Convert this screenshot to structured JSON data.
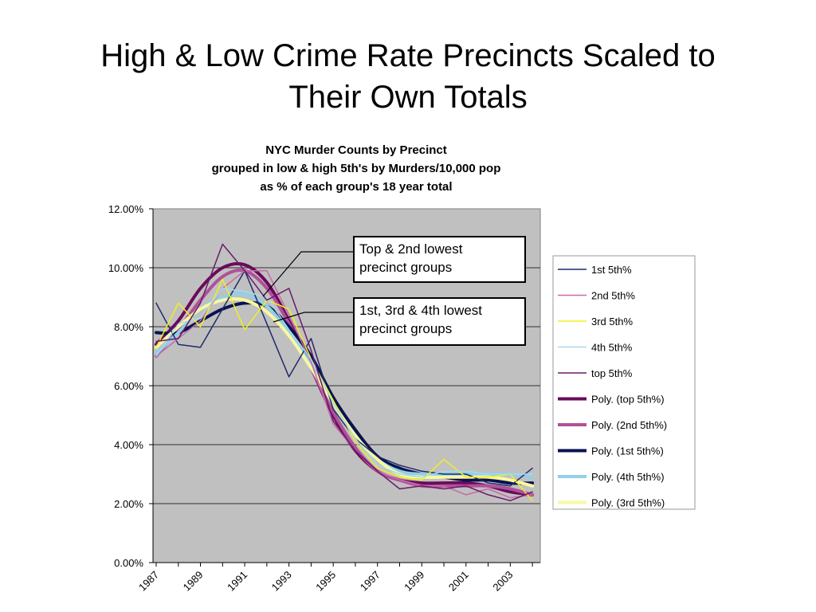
{
  "slide": {
    "title_line1": "High & Low Crime Rate Precincts Scaled to",
    "title_line2": "Their Own Totals"
  },
  "chart_data": {
    "type": "line",
    "title_lines": [
      "NYC Murder Counts by Precinct",
      "grouped in low & high 5th's by Murders/10,000 pop",
      "as % of each group's 18 year total"
    ],
    "x": [
      1987,
      1988,
      1989,
      1990,
      1991,
      1992,
      1993,
      1994,
      1995,
      1996,
      1997,
      1998,
      1999,
      2000,
      2001,
      2002,
      2003,
      2004
    ],
    "x_tick_labels": [
      "1987",
      "1989",
      "1991",
      "1993",
      "1995",
      "1997",
      "1999",
      "2001",
      "2003"
    ],
    "ylim": [
      0,
      12
    ],
    "y_tick_labels": [
      "0.00%",
      "2.00%",
      "4.00%",
      "6.00%",
      "8.00%",
      "10.00%",
      "12.00%"
    ],
    "plot_background": "#c0c0c0",
    "series": [
      {
        "name": "1st 5th%",
        "color": "#1f2a6b",
        "width": 1.5,
        "values": [
          8.8,
          7.4,
          7.3,
          8.6,
          9.9,
          8.1,
          6.3,
          7.6,
          5.2,
          4.2,
          3.6,
          3.3,
          3.1,
          3.0,
          3.0,
          2.7,
          2.6,
          3.2
        ]
      },
      {
        "name": "2nd 5th%",
        "color": "#c66aa8",
        "width": 1.5,
        "values": [
          7.0,
          7.6,
          8.2,
          9.3,
          9.9,
          9.9,
          8.4,
          6.8,
          4.7,
          3.8,
          3.1,
          2.8,
          2.6,
          2.6,
          2.3,
          2.5,
          2.2,
          2.3
        ]
      },
      {
        "name": "3rd 5th%",
        "color": "#f0f020",
        "width": 1.5,
        "values": [
          7.3,
          8.8,
          8.0,
          9.6,
          7.9,
          8.9,
          8.6,
          6.9,
          5.5,
          4.1,
          3.2,
          2.9,
          2.8,
          3.5,
          2.9,
          2.9,
          3.0,
          2.1
        ]
      },
      {
        "name": "4th 5th%",
        "color": "#a8d8f0",
        "width": 1.5,
        "values": [
          7.0,
          8.1,
          8.3,
          9.3,
          9.2,
          9.0,
          7.9,
          6.9,
          5.4,
          4.2,
          3.3,
          3.0,
          2.9,
          3.1,
          3.1,
          3.0,
          3.0,
          3.0
        ]
      },
      {
        "name": "top 5th%",
        "color": "#6a1a6a",
        "width": 1.5,
        "values": [
          7.5,
          7.6,
          8.8,
          10.8,
          9.9,
          8.9,
          9.3,
          7.2,
          4.8,
          3.8,
          3.1,
          2.5,
          2.6,
          2.5,
          2.6,
          2.3,
          2.1,
          2.4
        ]
      },
      {
        "name": "Poly. (top 5th%)",
        "color": "#6a0a5a",
        "width": 4,
        "values": [
          7.4,
          8.2,
          9.3,
          10.0,
          10.1,
          9.5,
          8.2,
          6.6,
          5.0,
          3.8,
          3.1,
          2.8,
          2.7,
          2.7,
          2.7,
          2.6,
          2.4,
          2.3
        ]
      },
      {
        "name": "Poly. (2nd 5th%)",
        "color": "#b0509a",
        "width": 4,
        "values": [
          7.0,
          7.9,
          8.9,
          9.7,
          9.9,
          9.3,
          8.1,
          6.6,
          5.1,
          3.9,
          3.1,
          2.8,
          2.6,
          2.6,
          2.6,
          2.6,
          2.5,
          2.3
        ]
      },
      {
        "name": "Poly. (1st 5th%)",
        "color": "#0a1250",
        "width": 4,
        "values": [
          7.8,
          7.8,
          8.2,
          8.6,
          8.8,
          8.7,
          8.0,
          7.0,
          5.6,
          4.5,
          3.6,
          3.2,
          3.0,
          2.9,
          2.8,
          2.8,
          2.7,
          2.7
        ]
      },
      {
        "name": "Poly. (4th 5th%)",
        "color": "#90d0e8",
        "width": 4,
        "values": [
          7.1,
          7.8,
          8.6,
          9.0,
          9.1,
          8.7,
          7.8,
          6.7,
          5.4,
          4.3,
          3.5,
          3.1,
          3.0,
          3.0,
          3.0,
          3.0,
          3.0,
          2.9
        ]
      },
      {
        "name": "Poly. (3rd 5th%)",
        "color": "#f8f8a0",
        "width": 4,
        "values": [
          7.3,
          8.0,
          8.6,
          8.9,
          8.9,
          8.5,
          7.7,
          6.6,
          5.4,
          4.3,
          3.5,
          3.0,
          2.9,
          2.9,
          2.9,
          2.9,
          2.8,
          2.6
        ]
      }
    ],
    "annotations": [
      {
        "lines": [
          "Top & 2nd lowest",
          "precinct groups"
        ]
      },
      {
        "lines": [
          "1st, 3rd & 4th lowest",
          "precinct groups"
        ]
      }
    ],
    "legend_position": "right"
  }
}
